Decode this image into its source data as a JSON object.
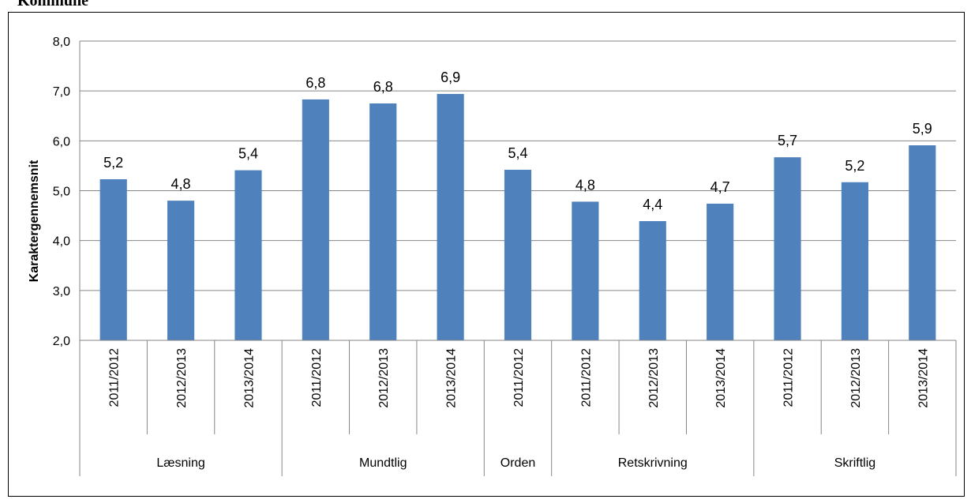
{
  "page": {
    "heading": "Kommune"
  },
  "chart_data": {
    "type": "bar",
    "title": "",
    "ylabel": "Karaktergennemsnit",
    "xlabel": "",
    "ylim": [
      2.0,
      8.0
    ],
    "yticks": [
      2.0,
      3.0,
      4.0,
      5.0,
      6.0,
      7.0,
      8.0
    ],
    "ytick_labels": [
      "2,0",
      "3,0",
      "4,0",
      "5,0",
      "6,0",
      "7,0",
      "8,0"
    ],
    "grid": true,
    "legend": "none",
    "colors": {
      "bar": "#4F81BD",
      "grid": "#868686",
      "axis": "#868686"
    },
    "groups": [
      {
        "label": "Læsning",
        "categories": [
          "2011/2012",
          "2012/2013",
          "2013/2014"
        ],
        "values": [
          5.23,
          4.8,
          5.41
        ],
        "data_labels": [
          "5,2",
          "4,8",
          "5,4"
        ]
      },
      {
        "label": "Mundtlig",
        "categories": [
          "2011/2012",
          "2012/2013",
          "2013/2014"
        ],
        "values": [
          6.83,
          6.75,
          6.94
        ],
        "data_labels": [
          "6,8",
          "6,8",
          "6,9"
        ]
      },
      {
        "label": "Orden",
        "categories": [
          "2011/2012"
        ],
        "values": [
          5.42
        ],
        "data_labels": [
          "5,4"
        ]
      },
      {
        "label": "Retskrivning",
        "categories": [
          "2011/2012",
          "2012/2013",
          "2013/2014"
        ],
        "values": [
          4.78,
          4.39,
          4.74
        ],
        "data_labels": [
          "4,8",
          "4,4",
          "4,7"
        ]
      },
      {
        "label": "Skriftlig",
        "categories": [
          "2011/2012",
          "2012/2013",
          "2013/2014"
        ],
        "values": [
          5.67,
          5.17,
          5.91
        ],
        "data_labels": [
          "5,7",
          "5,2",
          "5,9"
        ]
      }
    ]
  }
}
